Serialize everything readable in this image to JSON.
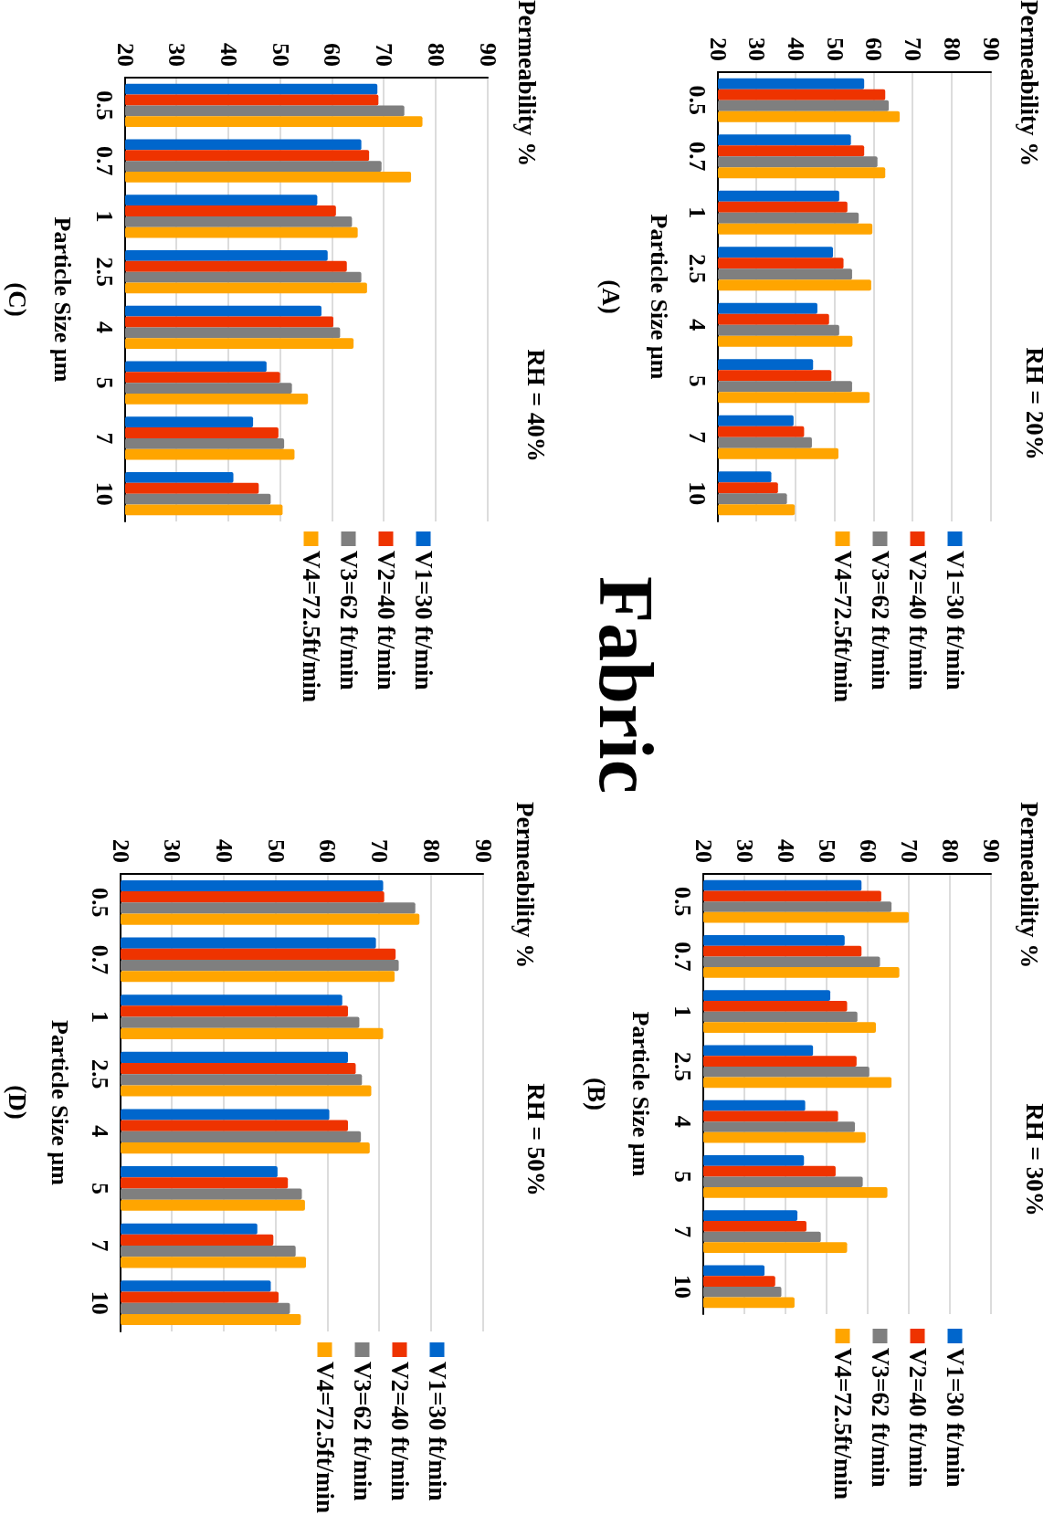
{
  "chart_data": [
    {
      "type": "bar",
      "orientation": "horizontal",
      "ylabel": "Particle Size µm",
      "annotations": [
        "RH = 20%",
        "Permeability %",
        "(A)"
      ],
      "categories": [
        "0.5",
        "0.7",
        "1",
        "2.5",
        "4",
        "5",
        "7",
        "10"
      ],
      "xlim": [
        20,
        90
      ],
      "xticks": [
        20,
        30,
        40,
        50,
        60,
        70,
        80,
        90
      ],
      "grid": "x",
      "legend": "bottom",
      "series": [
        {
          "name": "V1=30 ft/min",
          "color": "#0066cc",
          "values": [
            57.5,
            54.1,
            51.1,
            49.5,
            45.5,
            44.4,
            39.4,
            33.7
          ]
        },
        {
          "name": "V2=40 ft/min",
          "color": "#ee3300",
          "values": [
            62.9,
            57.5,
            53.2,
            52.2,
            48.5,
            49.1,
            42.1,
            35.4
          ]
        },
        {
          "name": "V3=62 ft/min",
          "color": "#7f7f7f",
          "values": [
            63.8,
            60.9,
            56.1,
            54.4,
            51.1,
            54.4,
            44.1,
            37.7
          ]
        },
        {
          "name": "V4=72.5ft/min",
          "color": "#ffa500",
          "values": [
            66.6,
            62.9,
            59.6,
            59.3,
            54.5,
            58.9,
            50.9,
            39.7
          ]
        }
      ]
    },
    {
      "type": "bar",
      "orientation": "horizontal",
      "ylabel": "Particle Size µm",
      "annotations": [
        "RH = 30%",
        "Permeability %",
        "(B)"
      ],
      "categories": [
        "0.5",
        "0.7",
        "1",
        "2.5",
        "4",
        "5",
        "7",
        "10"
      ],
      "xlim": [
        20,
        90
      ],
      "xticks": [
        20,
        30,
        40,
        50,
        60,
        70,
        80,
        90
      ],
      "grid": "x",
      "legend": "bottom",
      "series": [
        {
          "name": "V1=30 ft/min",
          "color": "#0066cc",
          "values": [
            58.5,
            54.4,
            50.9,
            46.7,
            44.8,
            44.5,
            42.9,
            34.9
          ]
        },
        {
          "name": "V2=40 ft/min",
          "color": "#ee3300",
          "values": [
            63.3,
            58.5,
            55.0,
            57.3,
            52.8,
            52.2,
            45.1,
            37.5
          ]
        },
        {
          "name": "V3=62 ft/min",
          "color": "#7f7f7f",
          "values": [
            65.8,
            63.0,
            57.5,
            60.4,
            56.9,
            58.8,
            48.6,
            39.0
          ]
        },
        {
          "name": "V4=72.5ft/min",
          "color": "#ffa500",
          "values": [
            70.0,
            67.7,
            62.0,
            65.8,
            59.5,
            64.8,
            55.0,
            42.2
          ]
        }
      ]
    },
    {
      "type": "other",
      "title": "Fabric"
    },
    {
      "type": "bar",
      "orientation": "horizontal",
      "ylabel": "Particle Size µm",
      "annotations": [
        "RH = 40%",
        "Permeability %",
        "(C)"
      ],
      "categories": [
        "0.5",
        "0.7",
        "1",
        "2.5",
        "4",
        "5",
        "7",
        "10"
      ],
      "xlim": [
        20,
        90
      ],
      "xticks": [
        20,
        30,
        40,
        50,
        60,
        70,
        80,
        90
      ],
      "grid": "x",
      "legend": "bottom",
      "series": [
        {
          "name": "V1=30 ft/min",
          "color": "#0066cc",
          "values": [
            68.7,
            65.6,
            57.1,
            59.1,
            57.9,
            47.3,
            44.7,
            40.9
          ]
        },
        {
          "name": "V2=40 ft/min",
          "color": "#ee3300",
          "values": [
            68.9,
            67.1,
            60.7,
            62.8,
            60.2,
            49.9,
            49.6,
            45.8
          ]
        },
        {
          "name": "V3=62 ft/min",
          "color": "#7f7f7f",
          "values": [
            73.9,
            69.5,
            63.8,
            65.6,
            61.5,
            52.2,
            50.7,
            48.1
          ]
        },
        {
          "name": "V4=72.5ft/min",
          "color": "#ffa500",
          "values": [
            77.4,
            75.2,
            64.9,
            66.7,
            64.1,
            55.3,
            52.7,
            50.4
          ]
        }
      ]
    },
    {
      "type": "bar",
      "orientation": "horizontal",
      "ylabel": "Particle Size µm",
      "annotations": [
        "RH = 50%",
        "Permeability %",
        "(D)"
      ],
      "categories": [
        "0.5",
        "0.7",
        "1",
        "2.5",
        "4",
        "5",
        "7",
        "10"
      ],
      "xlim": [
        20,
        90
      ],
      "xticks": [
        20,
        30,
        40,
        50,
        60,
        70,
        80,
        90
      ],
      "grid": "x",
      "legend": "bottom",
      "series": [
        {
          "name": "V1=30 ft/min",
          "color": "#0066cc",
          "values": [
            70.7,
            69.3,
            62.8,
            63.9,
            60.3,
            50.3,
            46.4,
            49.0
          ]
        },
        {
          "name": "V2=40 ft/min",
          "color": "#ee3300",
          "values": [
            70.9,
            73.1,
            63.9,
            65.4,
            63.9,
            52.3,
            49.5,
            50.5
          ]
        },
        {
          "name": "V3=62 ft/min",
          "color": "#7f7f7f",
          "values": [
            76.9,
            73.7,
            66.1,
            66.6,
            66.4,
            55.0,
            53.8,
            52.7
          ]
        },
        {
          "name": "V4=72.5ft/min",
          "color": "#ffa500",
          "values": [
            77.7,
            72.9,
            70.7,
            68.4,
            68.1,
            55.6,
            55.8,
            54.8
          ]
        }
      ]
    }
  ]
}
